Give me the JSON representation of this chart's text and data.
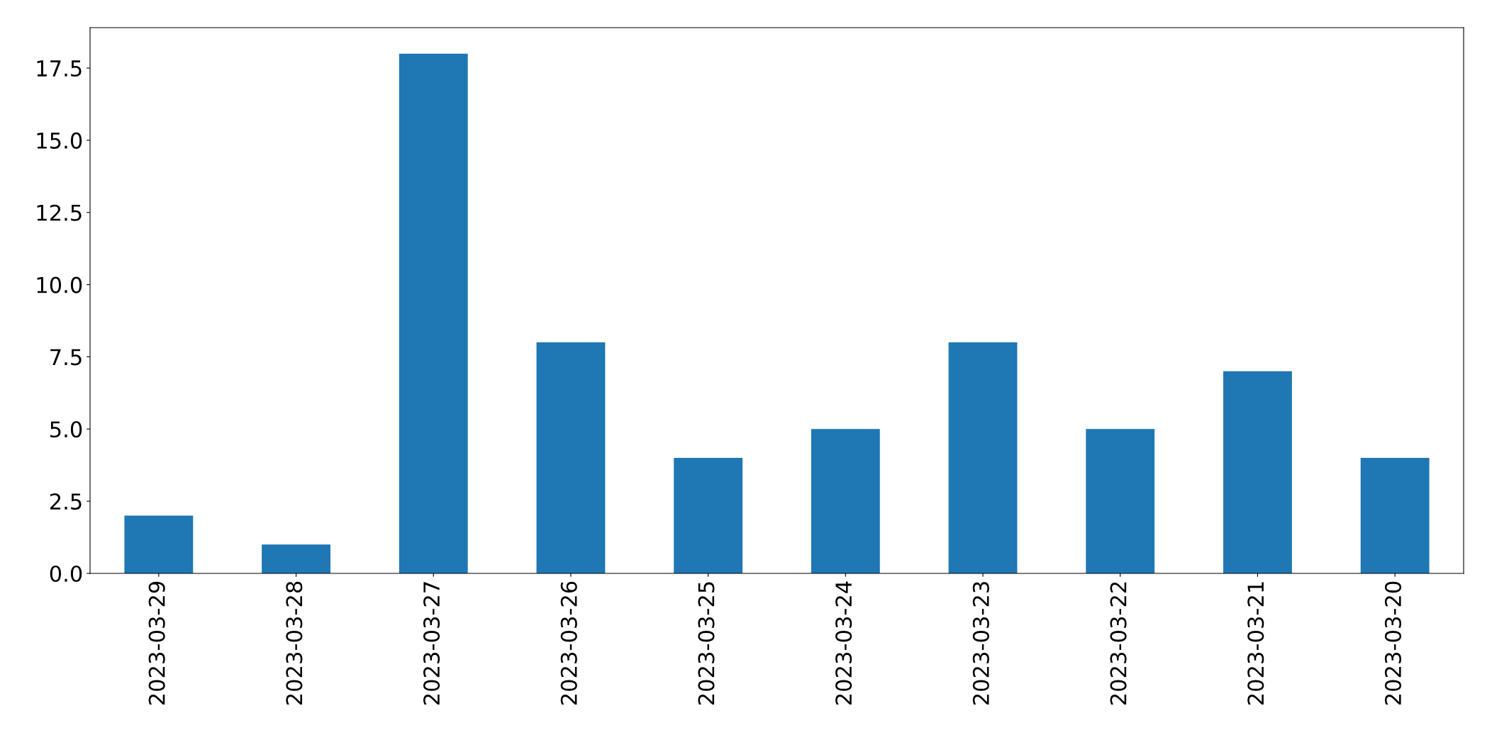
{
  "chart_data": {
    "type": "bar",
    "categories": [
      "2023-03-29",
      "2023-03-28",
      "2023-03-27",
      "2023-03-26",
      "2023-03-25",
      "2023-03-24",
      "2023-03-23",
      "2023-03-22",
      "2023-03-21",
      "2023-03-20"
    ],
    "values": [
      2,
      1,
      18,
      8,
      4,
      5,
      8,
      5,
      7,
      4
    ],
    "color": "#1f77b4",
    "ylim": [
      0,
      18.9
    ],
    "yticks": [
      {
        "value": 0,
        "label": "0.0"
      },
      {
        "value": 2.5,
        "label": "2.5"
      },
      {
        "value": 5,
        "label": "5.0"
      },
      {
        "value": 7.5,
        "label": "7.5"
      },
      {
        "value": 10,
        "label": "10.0"
      },
      {
        "value": 12.5,
        "label": "12.5"
      },
      {
        "value": 15,
        "label": "15.0"
      },
      {
        "value": 17.5,
        "label": "17.5"
      }
    ],
    "grid": false
  }
}
